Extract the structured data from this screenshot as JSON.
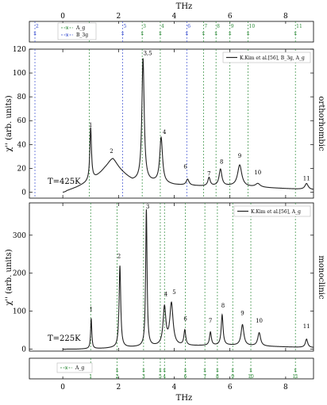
{
  "top_axis_label": "THz",
  "bottom_axis_label": "THz",
  "top_strip": {
    "legend": [
      {
        "label": "A_g",
        "color": "#2e8b3a"
      },
      {
        "label": "B_3g",
        "color": "#3a4fd0"
      }
    ]
  },
  "bottom_strip": {
    "legend": [
      {
        "label": "A_g",
        "color": "#2e8b3a"
      }
    ]
  },
  "colors": {
    "ag": "#2e8b3a",
    "b3g": "#3a4fd0",
    "curve": "#222222"
  },
  "chart_data": [
    {
      "type": "line",
      "side_label": "orthorhombic",
      "temperature_label": "T=425K",
      "ylabel": "χ'' (arb. units)",
      "xlabel": "THz",
      "xlim": [
        -1.2,
        9.0
      ],
      "ylim": [
        -5,
        120
      ],
      "x_ticks": [
        0,
        2,
        4,
        6,
        8
      ],
      "y_ticks": [
        0,
        20,
        40,
        60,
        80,
        100,
        120
      ],
      "legend": "K.Kim et al.[56], B_3g, A_g",
      "legend_position": "top-right",
      "mode_lines": [
        {
          "x": -1.0,
          "label": "2",
          "sym": "B3g"
        },
        {
          "x": 0.95,
          "label": "1",
          "sym": "Ag"
        },
        {
          "x": 2.15,
          "label": "5",
          "sym": "B3g"
        },
        {
          "x": 2.85,
          "label": "3",
          "sym": "Ag"
        },
        {
          "x": 3.5,
          "label": "4",
          "sym": "Ag"
        },
        {
          "x": 4.45,
          "label": "6",
          "sym": "B3g"
        },
        {
          "x": 5.05,
          "label": "7",
          "sym": "Ag"
        },
        {
          "x": 5.5,
          "label": "8",
          "sym": "Ag"
        },
        {
          "x": 6.0,
          "label": "9",
          "sym": "Ag"
        },
        {
          "x": 6.65,
          "label": "10",
          "sym": "Ag"
        },
        {
          "x": 8.35,
          "label": "11",
          "sym": "Ag"
        }
      ],
      "peak_labels": [
        {
          "text": "1",
          "x": 1.0,
          "y": 55
        },
        {
          "text": "2",
          "x": 1.75,
          "y": 33
        },
        {
          "text": "3,5",
          "x": 3.05,
          "y": 115
        },
        {
          "text": "4",
          "x": 3.65,
          "y": 49
        },
        {
          "text": "6",
          "x": 4.4,
          "y": 20
        },
        {
          "text": "7",
          "x": 5.25,
          "y": 14
        },
        {
          "text": "8",
          "x": 5.7,
          "y": 24
        },
        {
          "text": "9",
          "x": 6.35,
          "y": 29
        },
        {
          "text": "10",
          "x": 7.0,
          "y": 15
        },
        {
          "text": "11",
          "x": 8.75,
          "y": 10
        }
      ],
      "baseline": {
        "x": [
          0,
          0.2,
          0.5,
          0.8,
          1.2,
          1.5,
          1.8,
          2.2,
          2.5,
          3.3,
          4.0,
          5.0,
          6.0,
          7.0,
          8.0,
          9.0
        ],
        "y": [
          0,
          1.5,
          4,
          7,
          12,
          17,
          20,
          14,
          9,
          8,
          6,
          5,
          5,
          4,
          3,
          2
        ]
      },
      "peaks": [
        {
          "x": 1.0,
          "height": 44,
          "width": 0.035
        },
        {
          "x": 1.78,
          "height": 8,
          "width": 0.25
        },
        {
          "x": 2.88,
          "height": 103,
          "width": 0.05
        },
        {
          "x": 3.53,
          "height": 38,
          "width": 0.06
        },
        {
          "x": 4.48,
          "height": 5,
          "width": 0.06
        },
        {
          "x": 5.25,
          "height": 7,
          "width": 0.05
        },
        {
          "x": 5.66,
          "height": 14,
          "width": 0.06
        },
        {
          "x": 6.35,
          "height": 18,
          "width": 0.09
        },
        {
          "x": 7.0,
          "height": 3,
          "width": 0.1
        },
        {
          "x": 8.75,
          "height": 5,
          "width": 0.07
        }
      ]
    },
    {
      "type": "line",
      "side_label": "monoclinic",
      "temperature_label": "T=225K",
      "ylabel": "χ'' (arb. units)",
      "xlabel": "THz",
      "xlim": [
        -1.2,
        9.0
      ],
      "ylim": [
        -5,
        385
      ],
      "x_ticks": [
        0,
        2,
        4,
        6,
        8
      ],
      "y_ticks": [
        0,
        100,
        200,
        300
      ],
      "legend": "K.Kim et al.[56], A_g",
      "legend_position": "top-right",
      "mode_lines": [
        {
          "x": 1.0,
          "label": "1"
        },
        {
          "x": 1.95,
          "label": "2"
        },
        {
          "x": 2.9,
          "label": "3"
        },
        {
          "x": 3.5,
          "label": "5"
        },
        {
          "x": 3.65,
          "label": "4"
        },
        {
          "x": 4.4,
          "label": "6"
        },
        {
          "x": 5.1,
          "label": "7"
        },
        {
          "x": 5.55,
          "label": "8"
        },
        {
          "x": 6.1,
          "label": "9"
        },
        {
          "x": 6.75,
          "label": "10"
        },
        {
          "x": 8.35,
          "label": "11"
        }
      ],
      "peak_labels": [
        {
          "text": "1",
          "x": 1.02,
          "y": 100
        },
        {
          "text": "2",
          "x": 2.02,
          "y": 240
        },
        {
          "text": "3",
          "x": 3.05,
          "y": 370
        },
        {
          "text": "4",
          "x": 3.7,
          "y": 140
        },
        {
          "text": "5",
          "x": 4.0,
          "y": 145
        },
        {
          "text": "6",
          "x": 4.4,
          "y": 75
        },
        {
          "text": "7",
          "x": 5.3,
          "y": 70
        },
        {
          "text": "8",
          "x": 5.75,
          "y": 110
        },
        {
          "text": "9",
          "x": 6.45,
          "y": 90
        },
        {
          "text": "10",
          "x": 7.05,
          "y": 70
        },
        {
          "text": "11",
          "x": 8.75,
          "y": 55
        }
      ],
      "baseline": {
        "x": [
          0,
          0.5,
          1.0,
          1.5,
          2.0,
          3.0,
          4.0,
          5.0,
          6.0,
          7.0,
          8.0,
          9.0
        ],
        "y": [
          0,
          0,
          1,
          2,
          4,
          6,
          8,
          9,
          10,
          8,
          6,
          4
        ]
      },
      "peaks": [
        {
          "x": 1.02,
          "height": 80,
          "width": 0.025
        },
        {
          "x": 2.05,
          "height": 215,
          "width": 0.035
        },
        {
          "x": 3.0,
          "height": 360,
          "width": 0.03
        },
        {
          "x": 3.65,
          "height": 100,
          "width": 0.06
        },
        {
          "x": 3.9,
          "height": 110,
          "width": 0.07
        },
        {
          "x": 4.38,
          "height": 40,
          "width": 0.04
        },
        {
          "x": 5.3,
          "height": 35,
          "width": 0.04
        },
        {
          "x": 5.72,
          "height": 80,
          "width": 0.04
        },
        {
          "x": 6.45,
          "height": 55,
          "width": 0.06
        },
        {
          "x": 7.05,
          "height": 35,
          "width": 0.06
        },
        {
          "x": 8.75,
          "height": 22,
          "width": 0.05
        }
      ]
    }
  ]
}
